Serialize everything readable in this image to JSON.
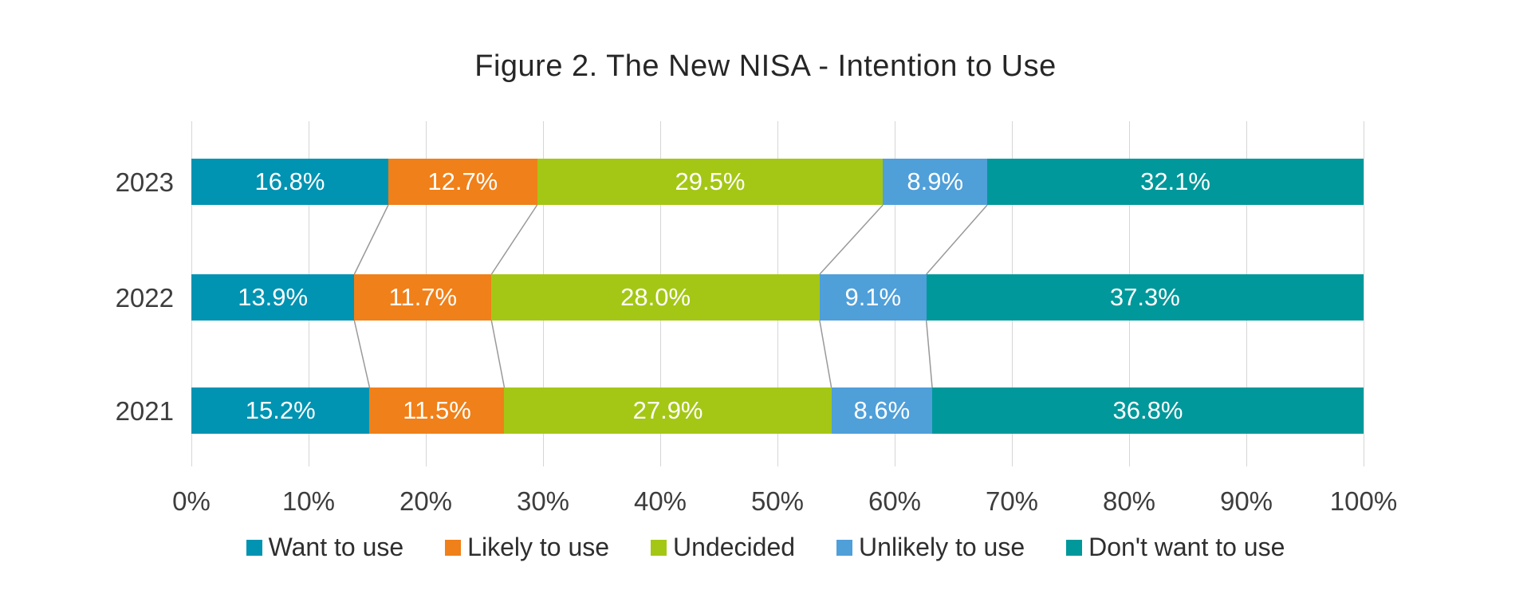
{
  "chart_data": {
    "type": "bar",
    "orientation": "horizontal",
    "stacked": true,
    "title": "Figure 2. The New NISA - Intention to Use",
    "categories": [
      "2023",
      "2022",
      "2021"
    ],
    "series": [
      {
        "name": "Want to use",
        "color": "#0093b2",
        "values": [
          16.8,
          13.9,
          15.2
        ]
      },
      {
        "name": "Likely to use",
        "color": "#f08019",
        "values": [
          12.7,
          11.7,
          11.5
        ]
      },
      {
        "name": "Undecided",
        "color": "#a4c715",
        "values": [
          29.5,
          28.0,
          27.9
        ]
      },
      {
        "name": "Unlikely to use",
        "color": "#4f9fd9",
        "values": [
          8.9,
          9.1,
          8.6
        ]
      },
      {
        "name": "Don't want to use",
        "color": "#00989b",
        "values": [
          32.1,
          37.3,
          36.8
        ]
      }
    ],
    "value_labels": [
      [
        "16.8%",
        "12.7%",
        "29.5%",
        "8.9%",
        "32.1%"
      ],
      [
        "13.9%",
        "11.7%",
        "28.0%",
        "9.1%",
        "37.3%"
      ],
      [
        "15.2%",
        "11.5%",
        "27.9%",
        "8.6%",
        "36.8%"
      ]
    ],
    "x_ticks": [
      "0%",
      "10%",
      "20%",
      "30%",
      "40%",
      "50%",
      "60%",
      "70%",
      "80%",
      "90%",
      "100%"
    ],
    "xlim": [
      0,
      100
    ],
    "grid": true,
    "legend_position": "bottom",
    "connectors": true,
    "colors": {
      "grid": "#d6d6d6",
      "connector": "#999999",
      "value_label_text": "#ffffff",
      "axis_text": "#3d3d3d",
      "title_text": "#262626"
    }
  }
}
